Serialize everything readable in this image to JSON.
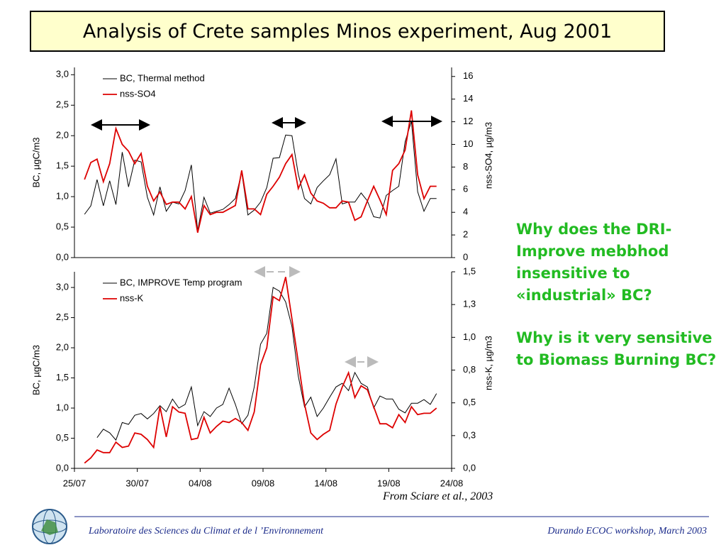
{
  "title": "Analysis of Crete samples Minos experiment, Aug 2001",
  "questions": [
    "Why does the DRI-Improve mebbhod insensitive to «industrial» BC?",
    "Why is it very sensitive to Biomass Burning BC?"
  ],
  "citation": "From Sciare et al., 2003",
  "footer": {
    "left": "Laboratoire des Sciences du Climat et de l ’Environnement",
    "right": "Durando ECOC workshop, March 2003"
  },
  "chart_data": [
    {
      "type": "line",
      "ylabel": "BC, µgC/m3",
      "y2label": "nss-SO4, µg/m3",
      "x": [
        0.8,
        1.3,
        1.8,
        2.3,
        2.8,
        3.3,
        3.8,
        4.3,
        4.8,
        5.3,
        5.8,
        6.3,
        6.8,
        7.3,
        7.8,
        8.3,
        8.8,
        9.3,
        9.8,
        10.3,
        10.8,
        11.3,
        11.8,
        12.3,
        12.8,
        13.3,
        13.8,
        14.3,
        14.8,
        15.3,
        15.8,
        16.3,
        16.8,
        17.3,
        17.8,
        18.3,
        18.8,
        19.3,
        19.8,
        20.3,
        20.8,
        21.3,
        21.8,
        22.3,
        22.8,
        23.3,
        23.8,
        24.3,
        24.8,
        25.3,
        25.8,
        26.3,
        26.8,
        27.3,
        27.8,
        28.3,
        28.8
      ],
      "xlim": [
        0,
        30
      ],
      "ylim": [
        0,
        3.12
      ],
      "yticks": [
        {
          "value": 0,
          "label": "0,0"
        },
        {
          "value": 0.5,
          "label": "0,5"
        },
        {
          "value": 1,
          "label": "1,0"
        },
        {
          "value": 1.5,
          "label": "1,5"
        },
        {
          "value": 2,
          "label": "2,0"
        },
        {
          "value": 2.5,
          "label": "2,5"
        },
        {
          "value": 3,
          "label": "3,0"
        }
      ],
      "y2lim": [
        0,
        16.8
      ],
      "y2ticks": [
        0,
        2,
        4,
        6,
        8,
        10,
        12,
        14,
        16
      ],
      "legend": "upper left",
      "series": [
        {
          "name": "BC, Thermal method",
          "color": "#000000",
          "values": [
            0.71,
            0.85,
            1.28,
            0.85,
            1.26,
            0.87,
            1.73,
            1.16,
            1.6,
            1.57,
            0.99,
            0.7,
            1.16,
            0.76,
            0.91,
            0.88,
            1.1,
            1.52,
            0.44,
            0.99,
            0.73,
            0.76,
            0.79,
            0.87,
            0.97,
            1.4,
            0.7,
            0.78,
            0.91,
            1.15,
            1.63,
            1.64,
            2.01,
            2.0,
            1.37,
            0.97,
            0.88,
            1.15,
            1.26,
            1.36,
            1.62,
            0.88,
            0.91,
            0.91,
            1.06,
            0.93,
            0.67,
            0.65,
            1.02,
            1.1,
            1.17,
            1.9,
            2.24,
            1.08,
            0.76,
            0.97,
            0.97
          ]
        },
        {
          "name": "nss-SO4",
          "color": "#dd0000",
          "axis": "y2",
          "values": [
            6.9,
            8.4,
            8.7,
            6.7,
            8.3,
            11.4,
            10.0,
            9.4,
            8.3,
            9.2,
            6.3,
            5.0,
            5.8,
            4.7,
            4.9,
            4.9,
            4.3,
            5.4,
            2.2,
            4.6,
            3.8,
            4.0,
            4.0,
            4.3,
            4.6,
            7.7,
            4.3,
            4.3,
            3.8,
            5.6,
            6.3,
            7.1,
            8.3,
            9.1,
            6.1,
            7.3,
            5.7,
            5.0,
            4.8,
            4.4,
            4.4,
            5.0,
            4.9,
            3.3,
            3.6,
            5.0,
            6.3,
            5.1,
            3.8,
            7.7,
            8.3,
            9.5,
            13.0,
            7.3,
            5.2,
            6.3,
            6.3
          ]
        }
      ]
    },
    {
      "type": "line",
      "ylabel": "BC, µgC/m3",
      "y2label": "nss-K, µg/m3",
      "x": [
        0.8,
        1.3,
        1.8,
        2.3,
        2.8,
        3.3,
        3.8,
        4.3,
        4.8,
        5.3,
        5.8,
        6.3,
        6.8,
        7.3,
        7.8,
        8.3,
        8.8,
        9.3,
        9.8,
        10.3,
        10.8,
        11.3,
        11.8,
        12.3,
        12.8,
        13.3,
        13.8,
        14.3,
        14.8,
        15.3,
        15.8,
        16.3,
        16.8,
        17.3,
        17.8,
        18.3,
        18.8,
        19.3,
        19.8,
        20.3,
        20.8,
        21.3,
        21.8,
        22.3,
        22.8,
        23.3,
        23.8,
        24.3,
        24.8,
        25.3,
        25.8,
        26.3,
        26.8,
        27.3,
        27.8,
        28.3,
        28.8
      ],
      "xlim": [
        0,
        30
      ],
      "xticks": [
        {
          "value": 0,
          "label": "25/07"
        },
        {
          "value": 5,
          "label": "30/07"
        },
        {
          "value": 10,
          "label": "04/08"
        },
        {
          "value": 15,
          "label": "09/08"
        },
        {
          "value": 20,
          "label": "14/08"
        },
        {
          "value": 25,
          "label": "19/08"
        },
        {
          "value": 30,
          "label": "24/08"
        }
      ],
      "ylim": [
        0,
        3.26
      ],
      "yticks": [
        {
          "value": 0,
          "label": "0,0"
        },
        {
          "value": 0.5,
          "label": "0,5"
        },
        {
          "value": 1,
          "label": "1,0"
        },
        {
          "value": 1.5,
          "label": "1,5"
        },
        {
          "value": 2,
          "label": "2,0"
        },
        {
          "value": 2.5,
          "label": "2,5"
        },
        {
          "value": 3,
          "label": "3,0"
        }
      ],
      "y2lim": [
        0,
        1.5
      ],
      "y2ticks": [
        {
          "value": 0,
          "label": "0,0"
        },
        {
          "value": 0.25,
          "label": "0,3"
        },
        {
          "value": 0.5,
          "label": "0,5"
        },
        {
          "value": 0.75,
          "label": "0,8"
        },
        {
          "value": 1,
          "label": "1,0"
        },
        {
          "value": 1.25,
          "label": "1,3"
        },
        {
          "value": 1.5,
          "label": "1,5"
        }
      ],
      "legend": "upper left",
      "series": [
        {
          "name": "BC, IMPROVE Temp program",
          "color": "#000000",
          "values": [
            null,
            null,
            0.51,
            0.65,
            0.59,
            0.47,
            0.76,
            0.73,
            0.88,
            0.91,
            0.82,
            0.91,
            1.04,
            0.94,
            1.15,
            1.0,
            1.06,
            1.35,
            0.71,
            0.94,
            0.86,
            1.0,
            1.06,
            1.33,
            1.06,
            0.74,
            0.88,
            1.35,
            2.06,
            2.24,
            3.0,
            2.94,
            2.76,
            2.35,
            1.53,
            1.02,
            1.18,
            0.86,
            1.0,
            1.18,
            1.35,
            1.41,
            1.29,
            1.59,
            1.41,
            1.35,
            1.0,
            1.2,
            1.15,
            1.15,
            0.98,
            0.92,
            1.08,
            1.08,
            1.14,
            1.06,
            1.24
          ]
        },
        {
          "name": "nss-K",
          "color": "#dd0000",
          "axis": "y2",
          "values": [
            0.04,
            0.08,
            0.14,
            0.12,
            0.12,
            0.2,
            0.16,
            0.17,
            0.27,
            0.26,
            0.22,
            0.16,
            0.47,
            0.24,
            0.47,
            0.43,
            0.42,
            0.22,
            0.23,
            0.39,
            0.27,
            0.32,
            0.36,
            0.35,
            0.38,
            0.35,
            0.29,
            0.43,
            0.79,
            0.92,
            1.31,
            1.28,
            1.46,
            1.14,
            0.81,
            0.49,
            0.27,
            0.22,
            0.26,
            0.29,
            0.49,
            0.62,
            0.73,
            0.54,
            0.63,
            0.6,
            0.47,
            0.34,
            0.34,
            0.31,
            0.41,
            0.35,
            0.47,
            0.41,
            0.42,
            0.42,
            0.46
          ]
        }
      ]
    }
  ]
}
